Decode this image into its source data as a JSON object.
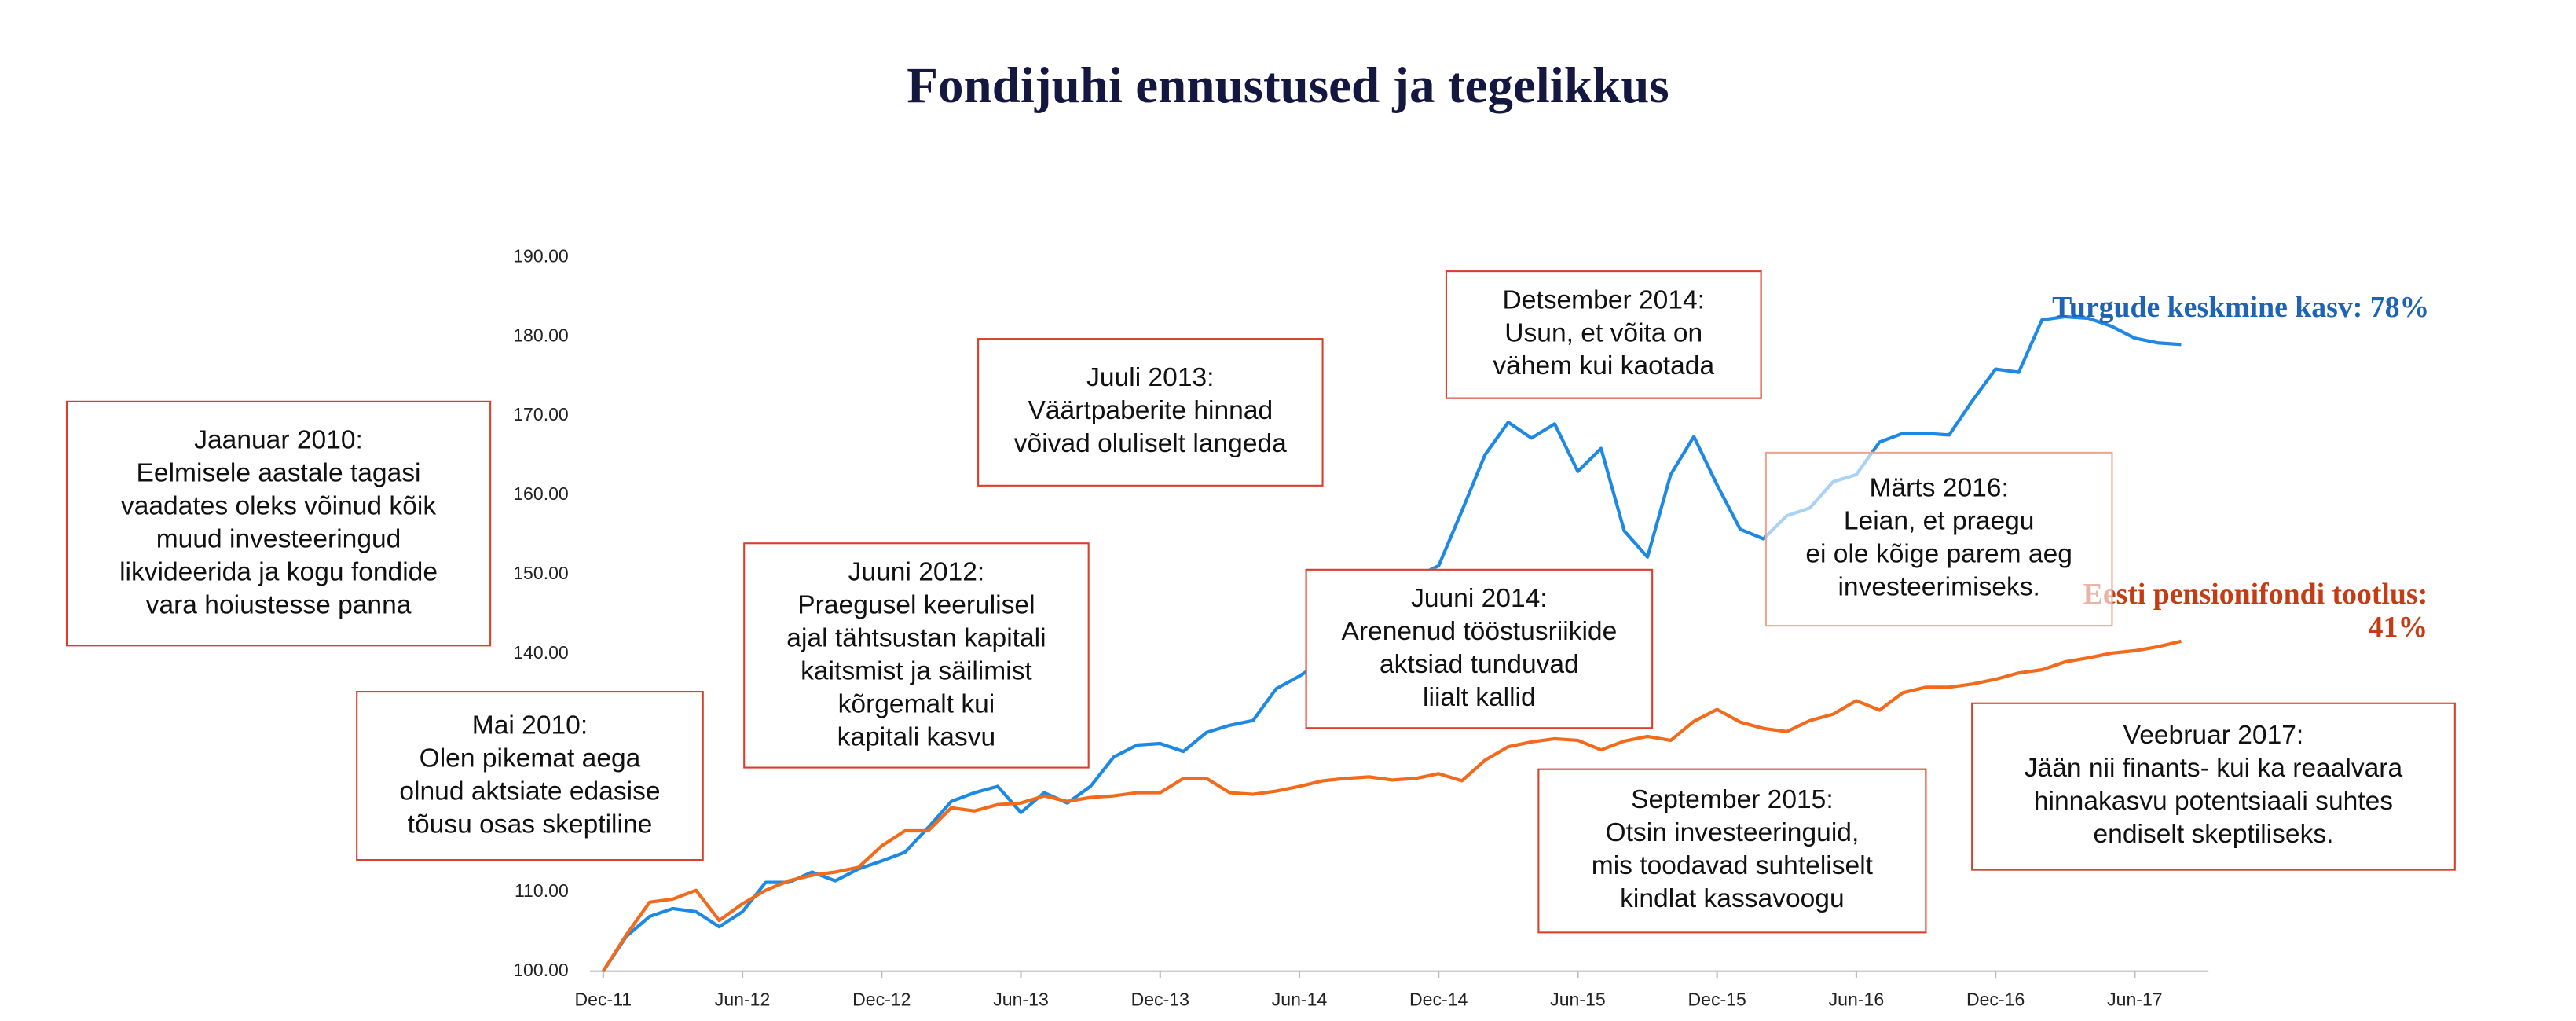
{
  "chart_data": {
    "type": "line",
    "title": "Fondijuhi ennustused ja tegelikkus",
    "x": [
      "Dec-11",
      null,
      null,
      null,
      null,
      null,
      "Jun-12",
      null,
      null,
      null,
      null,
      null,
      "Dec-12",
      null,
      null,
      null,
      null,
      null,
      "Jun-13",
      null,
      null,
      null,
      null,
      null,
      "Dec-13",
      null,
      null,
      null,
      null,
      null,
      "Jun-14",
      null,
      null,
      null,
      null,
      null,
      "Dec-14",
      null,
      null,
      null,
      null,
      null,
      "Jun-15",
      null,
      null,
      null,
      null,
      null,
      "Dec-15",
      null,
      null,
      null,
      null,
      null,
      "Jun-16",
      null,
      null,
      null,
      null,
      null,
      "Dec-16",
      null,
      null,
      null,
      null,
      null,
      "Jun-17",
      null,
      null
    ],
    "series": [
      {
        "name": "Turgude keskmine kasv: 78%",
        "color": "#1e88e5",
        "label_color": "#1f64b4",
        "values": [
          100,
          104.4,
          106.9,
          107.9,
          107.5,
          105.6,
          107.5,
          111.2,
          111.2,
          112.5,
          111.4,
          112.9,
          113.9,
          115,
          118.1,
          121.4,
          122.5,
          123.3,
          120,
          122.5,
          121.2,
          123.3,
          127,
          128.5,
          128.7,
          127.7,
          130.1,
          131,
          131.6,
          135.6,
          137.2,
          139.1,
          143.5,
          144.7,
          146.4,
          149.7,
          151.1,
          158,
          165.1,
          169.2,
          167.2,
          169,
          163,
          165.9,
          155.5,
          152.2,
          162.6,
          167.4,
          161.3,
          155.7,
          154.5,
          157.4,
          158.4,
          161.7,
          162.6,
          166.7,
          167.8,
          167.8,
          167.6,
          171.9,
          175.9,
          175.5,
          182.1,
          182.5,
          182.3,
          181.3,
          179.8,
          179.2,
          179
        ]
      },
      {
        "name": "Eesti pensionifondi tootlus: 41%",
        "color": "#f26b1d",
        "label_color": "#c43c14",
        "values": [
          100,
          104.6,
          108.7,
          109.1,
          110.2,
          106.4,
          108.5,
          110.2,
          111.4,
          112.1,
          112.5,
          113.1,
          115.8,
          117.7,
          117.7,
          120.6,
          120.2,
          121,
          121.2,
          122.1,
          121.4,
          121.9,
          122.1,
          122.5,
          122.5,
          124.3,
          124.3,
          122.5,
          122.3,
          122.7,
          123.3,
          124,
          124.3,
          124.5,
          124.1,
          124.3,
          124.9,
          124,
          126.6,
          128.3,
          128.9,
          129.3,
          129.1,
          127.9,
          129,
          129.6,
          129.1,
          131.5,
          133,
          131.4,
          130.6,
          130.2,
          131.6,
          132.4,
          134.1,
          132.9,
          135.1,
          135.8,
          135.8,
          136.2,
          136.8,
          137.6,
          138,
          139,
          139.5,
          140.1,
          140.4,
          140.9,
          141.6
        ]
      }
    ],
    "ylim": [
      100,
      190
    ],
    "yticks": [
      {
        "value": 100,
        "label": "100.00"
      },
      {
        "value": 110,
        "label": "110.00"
      },
      {
        "value": 140,
        "label": "140.00"
      },
      {
        "value": 150,
        "label": "150.00"
      },
      {
        "value": 160,
        "label": "160.00"
      },
      {
        "value": 170,
        "label": "170.00"
      },
      {
        "value": 180,
        "label": "180.00"
      },
      {
        "value": 190,
        "label": "190.00"
      }
    ],
    "annotations": [
      {
        "lines": [
          "Jaanuar 2010:",
          "Eelmisele aastale tagasi",
          "vaadates oleks võinud kõik",
          "muud investeeringud",
          "likvideerida ja kogu fondide",
          "vara hoiustesse panna"
        ]
      },
      {
        "lines": [
          "Mai 2010:",
          "Olen pikemat aega",
          "olnud aktsiate edasise",
          "tõusu osas skeptiline"
        ]
      },
      {
        "lines": [
          "Juuni 2012:",
          "Praegusel keerulisel",
          "ajal tähtsustan kapitali",
          "kaitsmist ja säilimist",
          "kõrgemalt kui",
          "kapitali kasvu"
        ]
      },
      {
        "lines": [
          "Juuli 2013:",
          "Väärtpaberite hinnad",
          "võivad oluliselt langeda"
        ]
      },
      {
        "lines": [
          "Juuni 2014:",
          "Arenenud tööstusriikide",
          "aktsiad tunduvad",
          "liialt kallid"
        ]
      },
      {
        "lines": [
          "Detsember 2014:",
          "Usun, et võita on",
          "vähem kui kaotada"
        ]
      },
      {
        "lines": [
          "September 2015:",
          "Otsin investeeringuid,",
          "mis toodavad suhteliselt",
          "kindlat kassavoogu"
        ]
      },
      {
        "lines": [
          "Märts 2016:",
          "Leian, et praegu",
          "ei ole kõige parem aeg",
          "investeerimiseks."
        ]
      },
      {
        "lines": [
          "Veebruar 2017:",
          "Jään nii finants- kui ka reaalvara",
          "hinnakasvu potentsiaali suhtes",
          "endiselt skeptiliseks."
        ]
      }
    ]
  }
}
